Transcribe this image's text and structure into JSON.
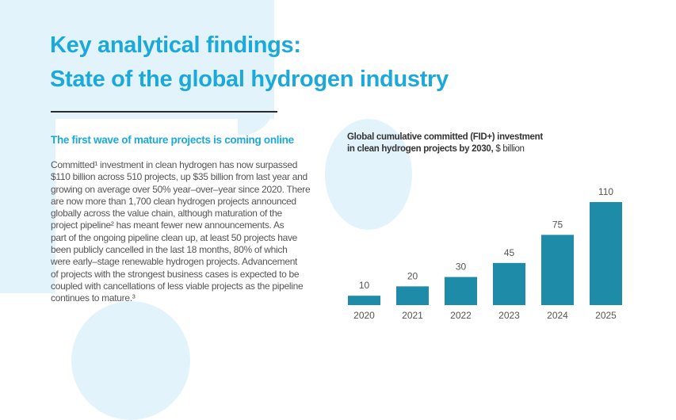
{
  "header": {
    "title_line1": "Key analytical findings:",
    "title_line2": "State of the global hydrogen industry"
  },
  "section": {
    "subtitle": "The first wave of mature projects is coming online",
    "paragraph_lines": [
      "Committed¹ investment in clean hydrogen has now surpassed",
      "$110 billion across 510 projects, up $35 billion from last year and",
      "growing on average over 50% year–over–year since 2020. There",
      "are now more than 1,700 clean hydrogen projects announced",
      "globally across the value chain, although maturation of the",
      "project pipeline² has meant fewer new announcements. As",
      "part of the ongoing pipeline clean up, at least 50 projects have",
      "been publicly cancelled in the last 18 months, 80% of which",
      "were early–stage renewable hydrogen projects. Advancement",
      "of projects with the strongest business cases is expected to be",
      "coupled with cancellations of less viable projects as the pipeline",
      "continues to mature.³"
    ]
  },
  "chart_data": {
    "type": "bar",
    "title_line1": "Global cumulative committed (FID+) investment",
    "title_line2": "in clean hydrogen projects by 2030,",
    "unit": "$ billion",
    "categories": [
      "2020",
      "2021",
      "2022",
      "2023",
      "2024",
      "2025"
    ],
    "values": [
      10,
      20,
      30,
      45,
      75,
      110
    ],
    "data_labels": [
      "10",
      "20",
      "30",
      "45",
      "75",
      "110"
    ],
    "xlabel": "",
    "ylabel": "",
    "ylim": [
      0,
      110
    ],
    "grid": false,
    "bar_color": "#1e8ba8"
  }
}
